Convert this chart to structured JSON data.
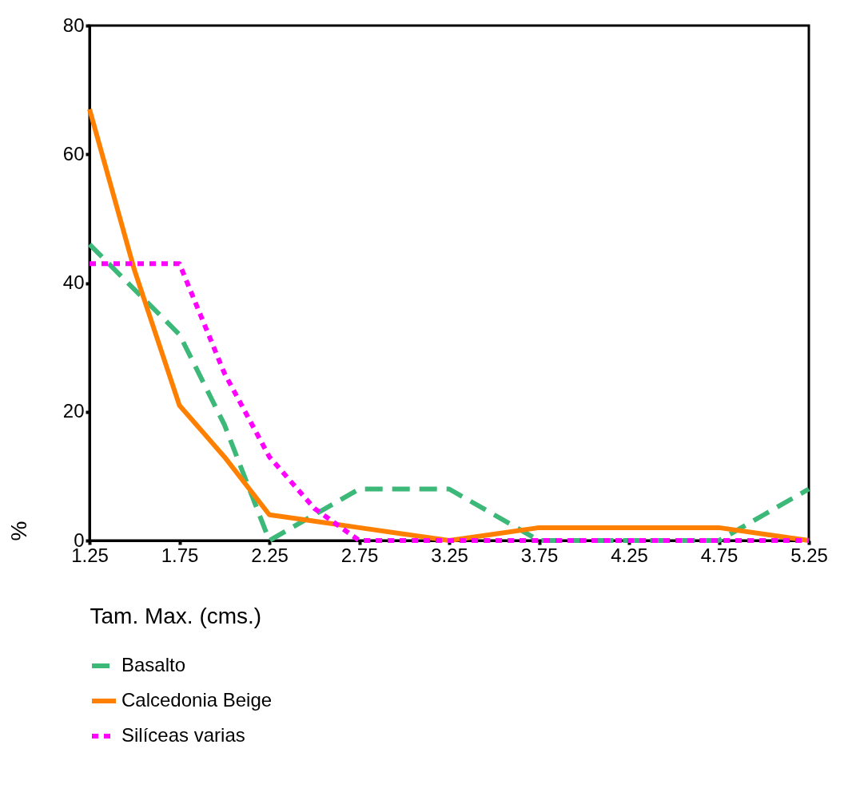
{
  "chart_data": {
    "type": "line",
    "xlabel": "Tam. Max. (cms.)",
    "ylabel": "%",
    "x": [
      1.25,
      1.5,
      1.75,
      2.0,
      2.25,
      2.5,
      2.75,
      3.0,
      3.25,
      3.5,
      3.75,
      4.0,
      4.25,
      4.5,
      4.75,
      5.0,
      5.25
    ],
    "series": [
      {
        "name": "Basalto",
        "color": "#3cb878",
        "line_style": "dashed",
        "values": [
          46,
          39,
          32,
          18,
          0,
          4,
          8,
          8,
          8,
          4,
          0,
          0,
          0,
          0,
          0,
          4,
          8
        ]
      },
      {
        "name": "Calcedonia Beige",
        "color": "#ff8000",
        "line_style": "solid",
        "values": [
          67,
          42,
          21,
          13,
          4,
          3,
          2,
          1,
          0,
          1,
          2,
          2,
          2,
          2,
          2,
          1,
          0
        ]
      },
      {
        "name": "Silíceas varias",
        "color": "#ff00ff",
        "line_style": "dotted",
        "values": [
          43,
          43,
          43,
          26,
          13,
          5,
          0,
          0,
          0,
          0,
          0,
          0,
          0,
          0,
          0,
          0,
          0
        ]
      }
    ],
    "xlim": [
      1.25,
      5.25
    ],
    "xticks": [
      1.25,
      1.75,
      2.25,
      2.75,
      3.25,
      3.75,
      4.25,
      4.75,
      5.25
    ],
    "ylim": [
      0,
      80
    ],
    "yticks": [
      0,
      20,
      40,
      60,
      80
    ],
    "grid": false,
    "legend": "bottom",
    "marker": "none"
  }
}
